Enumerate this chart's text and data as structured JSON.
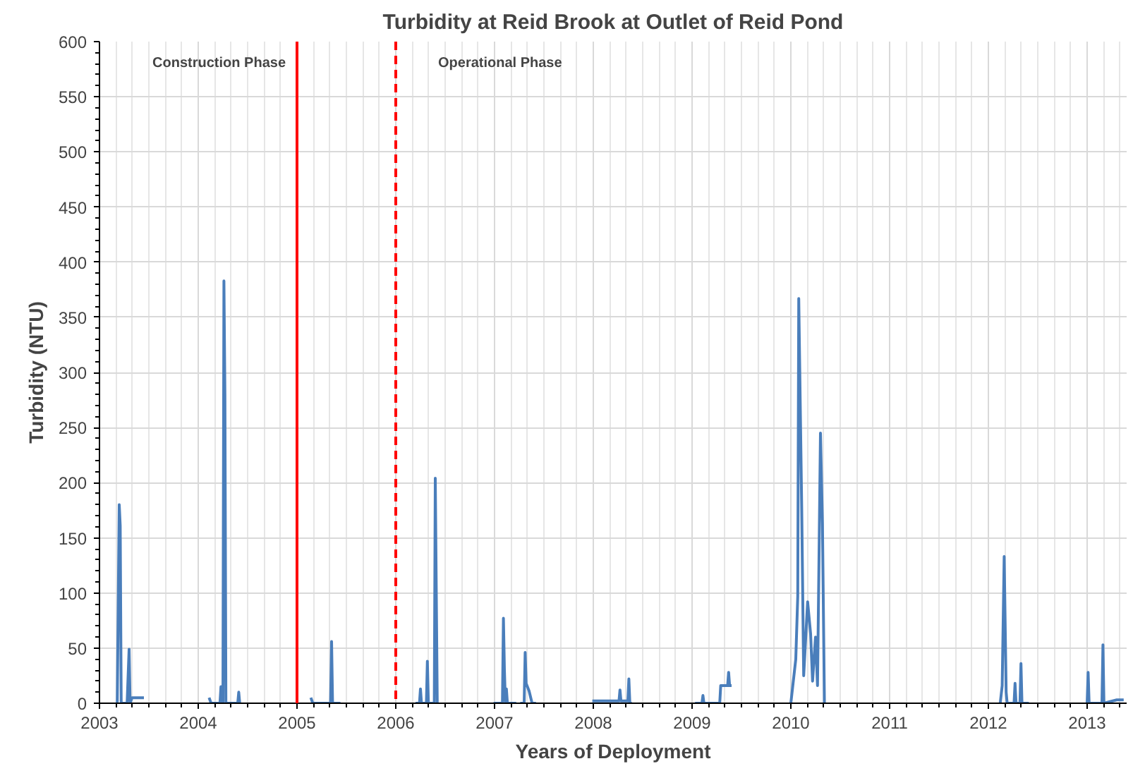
{
  "chart_data": {
    "type": "line",
    "title": "Turbidity at Reid Brook at Outlet of Reid Pond",
    "xlabel": "Years of Deployment",
    "ylabel": "Turbidity (NTU)",
    "x": [
      2003.18,
      2003.2,
      2003.21,
      2003.22,
      2003.28,
      2003.3,
      2003.31,
      2003.33,
      2003.45,
      2003.46,
      2004.11,
      2004.13,
      2004.22,
      2004.23,
      2004.25,
      2004.26,
      2004.27,
      2004.28,
      2004.4,
      2004.41,
      2004.42,
      2004.43,
      2005.14,
      2005.16,
      2005.34,
      2005.35,
      2005.36,
      2005.44,
      2005.45,
      2006.2,
      2006.24,
      2006.25,
      2006.26,
      2006.31,
      2006.32,
      2006.33,
      2006.39,
      2006.4,
      2006.42,
      2006.43,
      2006.99,
      2007.08,
      2007.09,
      2007.1,
      2007.11,
      2007.12,
      2007.13,
      2007.22,
      2007.23,
      2007.26,
      2007.3,
      2007.31,
      2007.32,
      2007.35,
      2007.38,
      2007.42,
      2007.43,
      2007.99,
      2008.26,
      2008.27,
      2008.28,
      2008.35,
      2008.36,
      2008.37,
      2008.39,
      2008.4,
      2009.03,
      2009.1,
      2009.11,
      2009.12,
      2009.28,
      2009.29,
      2009.36,
      2009.37,
      2009.38,
      2009.4,
      2009.41,
      2010.0,
      2010.05,
      2010.07,
      2010.08,
      2010.11,
      2010.13,
      2010.17,
      2010.2,
      2010.22,
      2010.25,
      2010.27,
      2010.3,
      2010.32,
      2010.34,
      2010.35,
      2012.12,
      2012.14,
      2012.16,
      2012.18,
      2012.19,
      2012.26,
      2012.27,
      2012.28,
      2012.32,
      2012.33,
      2012.34,
      2012.41,
      2012.42,
      2013.0,
      2013.01,
      2013.02,
      2013.15,
      2013.16,
      2013.17,
      2013.3,
      2013.37
    ],
    "values": [
      0,
      180,
      161,
      0,
      0,
      49,
      0,
      5,
      5,
      null,
      5,
      0,
      0,
      15,
      0,
      383,
      280,
      0,
      0,
      10,
      0,
      null,
      5,
      0,
      0,
      56,
      0,
      0,
      null,
      0,
      0,
      13,
      0,
      0,
      38,
      0,
      0,
      204,
      0,
      null,
      0,
      0,
      77,
      30,
      0,
      13,
      0,
      0,
      null,
      0,
      0,
      46,
      18,
      11,
      0,
      0,
      null,
      2,
      2,
      12,
      2,
      2,
      22,
      0,
      0,
      null,
      0,
      0,
      7,
      0,
      0,
      16,
      16,
      28,
      16,
      16,
      null,
      0,
      40,
      97,
      367,
      177,
      25,
      92,
      63,
      20,
      60,
      16,
      245,
      163,
      0,
      null,
      0,
      16,
      133,
      10,
      0,
      0,
      18,
      0,
      0,
      36,
      0,
      0,
      null,
      0,
      28,
      0,
      0,
      53,
      0,
      3,
      3
    ],
    "color": "#4a7ebb",
    "xlim": [
      2003,
      2013.4
    ],
    "xticks": [
      2003,
      2004,
      2005,
      2006,
      2007,
      2008,
      2009,
      2010,
      2011,
      2012,
      2013
    ],
    "ylim": [
      0,
      600
    ],
    "yticks": [
      0,
      50,
      100,
      150,
      200,
      250,
      300,
      350,
      400,
      450,
      500,
      550,
      600
    ],
    "grid": true,
    "marker": "none",
    "line_style": "solid",
    "ref_lines": [
      {
        "axis": "x",
        "value": 2005,
        "label": "Construction Phase",
        "color": "#ff0000",
        "line_style": "solid"
      },
      {
        "axis": "x",
        "value": 2006,
        "label": "Operational Phase",
        "color": "#ff0000",
        "line_style": "dashed"
      }
    ]
  }
}
